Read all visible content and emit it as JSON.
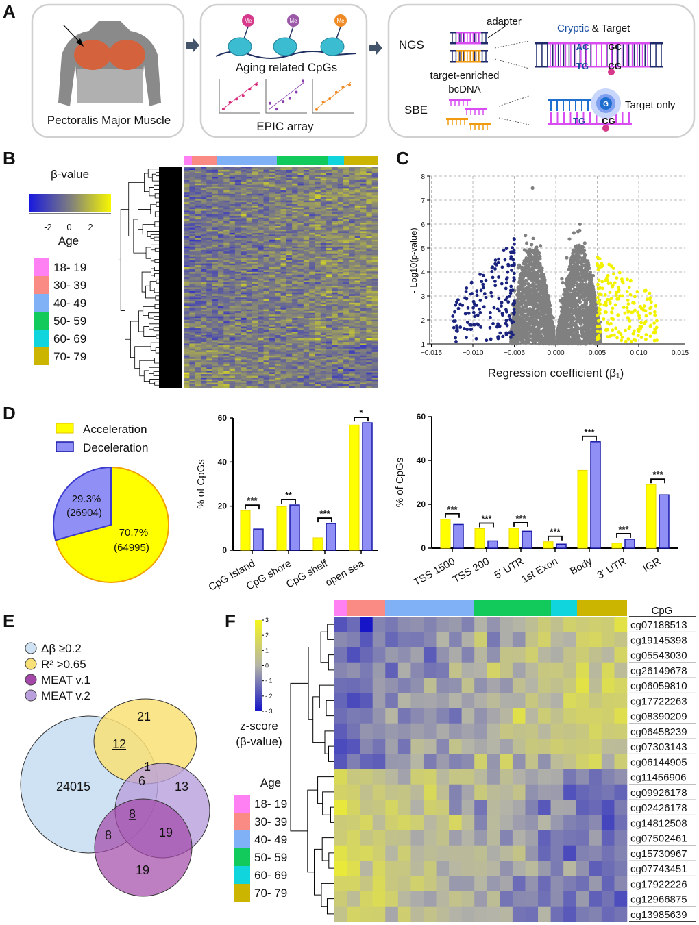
{
  "panel_labels": {
    "a": "A",
    "b": "B",
    "c": "C",
    "d": "D",
    "e": "E",
    "f": "F"
  },
  "panel_a": {
    "box1_caption": "Pectoralis Major Muscle",
    "box2_caption": "Aging related CpGs",
    "box2_subcaption": "EPIC array",
    "me_label": "Me",
    "ngs": "NGS",
    "sbe": "SBE",
    "adapter": "adapter",
    "target_enriched": "target-enriched",
    "bcdna": "bcDNA",
    "cryptic": "Cryptic",
    "and_target": "& Target",
    "target_only": "Target only",
    "bases": {
      "ac": "AC",
      "gc": "GC",
      "tg": "TG",
      "cg": "CG",
      "g": "G"
    },
    "me_colors": [
      "#d6398a",
      "#9b59a8",
      "#f08a24"
    ]
  },
  "age_legend_title": "Age",
  "age_groups": [
    {
      "label": "18- 19",
      "color": "#ff80f2"
    },
    {
      "label": "30- 39",
      "color": "#f98b84"
    },
    {
      "label": "40- 49",
      "color": "#80b1f6"
    },
    {
      "label": "50- 59",
      "color": "#12c95c"
    },
    {
      "label": "60- 69",
      "color": "#10d5dc"
    },
    {
      "label": "70- 79",
      "color": "#ccb500"
    }
  ],
  "chart_data": [
    {
      "panel": "B",
      "type": "heatmap",
      "colorbar_title": "β-value",
      "colorbar_ticks": [
        "-2",
        "0",
        "2"
      ],
      "colorbar_colors": [
        "#1818e0",
        "#7d7d80",
        "#f7f700"
      ],
      "column_groups": [
        "18- 19",
        "30- 39",
        "40- 49",
        "50- 59",
        "60- 69",
        "70- 79"
      ],
      "dendrogram": "rows"
    },
    {
      "panel": "C",
      "type": "scatter",
      "xlabel": "Regression coefficient (β₁)",
      "ylabel": "- Log10(p-value)",
      "xlim": [
        -0.015,
        0.015
      ],
      "ylim": [
        1,
        8
      ],
      "xticks": [
        "−0.015",
        "−0.010",
        "−0.005",
        "0.000",
        "0.005",
        "0.010",
        "0.015"
      ],
      "yticks": [
        "1",
        "2",
        "3",
        "4",
        "5",
        "6",
        "7",
        "8"
      ],
      "grid": true,
      "colors": {
        "deceleration": "#1a237e",
        "not_significant": "#808080",
        "acceleration": "#f2f200"
      },
      "thresholds_x": [
        -0.005,
        0.005
      ]
    },
    {
      "panel": "D",
      "type": "pie",
      "legend": [
        "Acceleration",
        "Deceleration"
      ],
      "legend_placement": "top",
      "slices": [
        {
          "name": "Acceleration",
          "percent": 70.7,
          "count": 64995,
          "label": "70.7%",
          "count_label": "(64995)",
          "color": "#ffff00"
        },
        {
          "name": "Deceleration",
          "percent": 29.3,
          "count": 26904,
          "label": "29.3%",
          "count_label": "(26904)",
          "color": "#8f8ff5"
        }
      ]
    },
    {
      "panel": "D",
      "type": "bar",
      "ylabel": "% of CpGs",
      "ylim": [
        0,
        60
      ],
      "yticks": [
        "0",
        "20",
        "40",
        "60"
      ],
      "categories": [
        "CpG Island",
        "CpG shore",
        "CpG shelf",
        "open sea"
      ],
      "series": [
        {
          "name": "Acceleration",
          "values": [
            18.0,
            19.8,
            5.6,
            56.8
          ],
          "color": "#ffff00"
        },
        {
          "name": "Deceleration",
          "values": [
            9.6,
            20.5,
            12.1,
            57.8
          ],
          "color": "#8f8ff5"
        }
      ],
      "significance": [
        "***",
        "**",
        "***",
        "*"
      ]
    },
    {
      "panel": "D",
      "type": "bar",
      "ylabel": "% of CpGs",
      "ylim": [
        0,
        60
      ],
      "yticks": [
        "0",
        "20",
        "40",
        "60"
      ],
      "categories": [
        "TSS 1500",
        "TSS 200",
        "5' UTR",
        "1st Exon",
        "Body",
        "3' UTR",
        "IGR"
      ],
      "series": [
        {
          "name": "Acceleration",
          "values": [
            13.2,
            8.9,
            9.1,
            2.9,
            35.5,
            2.2,
            29.0
          ],
          "color": "#ffff00"
        },
        {
          "name": "Deceleration",
          "values": [
            10.8,
            3.3,
            7.7,
            1.8,
            48.5,
            4.1,
            24.3
          ],
          "color": "#8f8ff5"
        }
      ],
      "significance": [
        "***",
        "***",
        "***",
        "***",
        "***",
        "***",
        "***"
      ]
    },
    {
      "panel": "E",
      "type": "venn",
      "sets": [
        {
          "name": "Δβ ≥0.2",
          "color": "#cfe2f3"
        },
        {
          "name": "R² >0.65",
          "color": "#f9e076"
        },
        {
          "name": "MEAT v.1",
          "color": "#a347a8"
        },
        {
          "name": "MEAT v.2",
          "color": "#b9a0dc"
        }
      ],
      "regions": [
        {
          "sets": [
            "Δβ ≥0.2"
          ],
          "value": "24015"
        },
        {
          "sets": [
            "R² >0.65"
          ],
          "value": "21"
        },
        {
          "sets": [
            "Δβ ≥0.2",
            "R² >0.65"
          ],
          "value": "12",
          "underlined": true
        },
        {
          "sets": [
            "Δβ ≥0.2",
            "R² >0.65",
            "MEAT v.2"
          ],
          "value": "1"
        },
        {
          "sets": [
            "Δβ ≥0.2",
            "MEAT v.2"
          ],
          "value": "6"
        },
        {
          "sets": [
            "MEAT v.2"
          ],
          "value": "13"
        },
        {
          "sets": [
            "Δβ ≥0.2",
            "MEAT v.1",
            "MEAT v.2"
          ],
          "value": "8",
          "underlined": true
        },
        {
          "sets": [
            "MEAT v.1",
            "MEAT v.2"
          ],
          "value": "19"
        },
        {
          "sets": [
            "Δβ ≥0.2",
            "MEAT v.1"
          ],
          "value": "8"
        },
        {
          "sets": [
            "MEAT v.1"
          ],
          "value": "19"
        }
      ]
    },
    {
      "panel": "F",
      "type": "heatmap",
      "colorbar_title": [
        "z-score",
        "(β-value)"
      ],
      "colorbar_ticks": [
        "3",
        "2",
        "1",
        "0",
        "- 1",
        "- 2",
        "- 3"
      ],
      "colorbar_colors": [
        "#1414c8",
        "#b4b4a8",
        "#f5f51e"
      ],
      "column_groups": [
        "18- 19",
        "30- 39",
        "40- 49",
        "50- 59",
        "60- 69",
        "70- 79"
      ],
      "row_header": "CpG",
      "rows": [
        "cg07188513",
        "cg19145398",
        "cg05543030",
        "cg26149678",
        "cg06059810",
        "cg17722263",
        "cg08390209",
        "cg06458239",
        "cg07303143",
        "cg06144905",
        "cg11456906",
        "cg09926178",
        "cg02426178",
        "cg14812508",
        "cg07502461",
        "cg15730967",
        "cg07743451",
        "cg17922226",
        "cg12966875",
        "cg13985639"
      ],
      "dendrogram": "rows"
    }
  ]
}
